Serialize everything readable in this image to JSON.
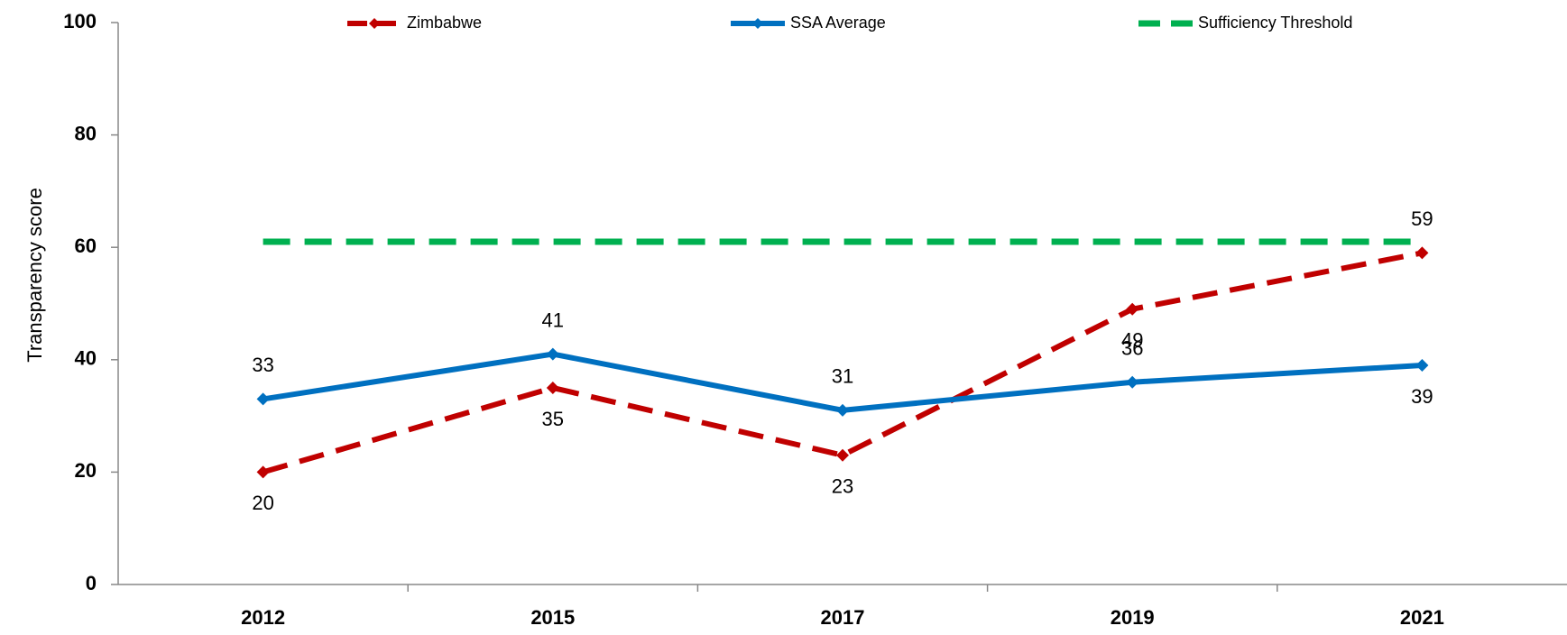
{
  "chart_data": {
    "type": "line",
    "y_label": "Transparency score",
    "categories": [
      "2012",
      "2015",
      "2017",
      "2019",
      "2021"
    ],
    "series": [
      {
        "name": "Zimbabwe",
        "color": "#c00000",
        "values": [
          20,
          35,
          23,
          49,
          59
        ],
        "dashed": true,
        "markers": true,
        "labels": true
      },
      {
        "name": "SSA Average",
        "color": "#0070c0",
        "values": [
          33,
          41,
          31,
          36,
          39
        ],
        "dashed": false,
        "markers": true,
        "labels": true
      },
      {
        "name": "Sufficiency Threshold",
        "color": "#00b050",
        "values": [
          61,
          61,
          61,
          61,
          61
        ],
        "dashed": true,
        "markers": false,
        "labels": false
      }
    ],
    "ylim": [
      0,
      100
    ],
    "yticks": [
      0,
      20,
      40,
      60,
      80,
      100
    ],
    "grid": false
  }
}
